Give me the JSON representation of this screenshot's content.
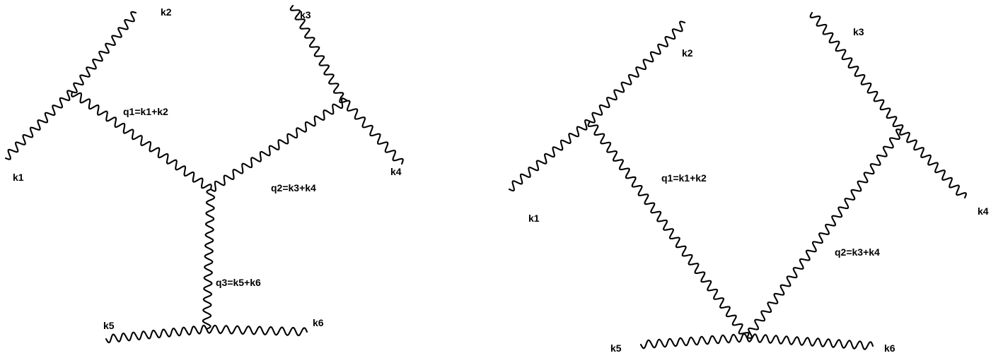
{
  "diagrams": [
    {
      "id": "tree",
      "lines": [
        {
          "name": "external-leg-k1",
          "label": "k1"
        },
        {
          "name": "external-leg-k2",
          "label": "k2"
        },
        {
          "name": "external-leg-k3",
          "label": "k3"
        },
        {
          "name": "external-leg-k4",
          "label": "k4"
        },
        {
          "name": "external-leg-k5",
          "label": "k5"
        },
        {
          "name": "external-leg-k6",
          "label": "k6"
        },
        {
          "name": "propagator-q1",
          "label": "q1=k1+k2"
        },
        {
          "name": "propagator-q2",
          "label": "q2=k3+k4"
        },
        {
          "name": "propagator-q3",
          "label": "q3=k5+k6"
        }
      ]
    },
    {
      "id": "loop",
      "lines": [
        {
          "name": "external-leg-k1",
          "label": "k1"
        },
        {
          "name": "external-leg-k2",
          "label": "k2"
        },
        {
          "name": "external-leg-k3",
          "label": "k3"
        },
        {
          "name": "external-leg-k4",
          "label": "k4"
        },
        {
          "name": "external-leg-k5",
          "label": "k5"
        },
        {
          "name": "external-leg-k6",
          "label": "k6"
        },
        {
          "name": "propagator-q1",
          "label": "q1=k1+k2"
        },
        {
          "name": "propagator-q2",
          "label": "q2=k3+k4"
        }
      ]
    }
  ]
}
